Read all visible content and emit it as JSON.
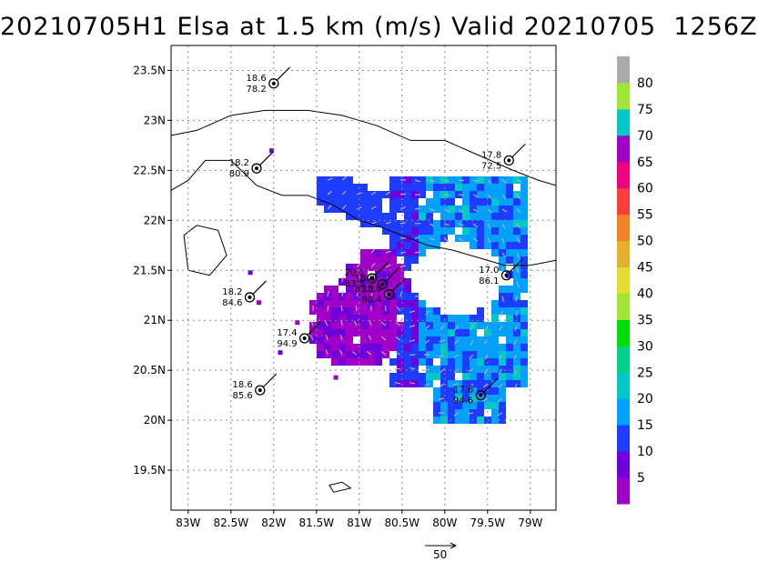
{
  "title": "20210705H1 Elsa at 1.5 km (m/s) Valid 20210705  1256Z",
  "chart_data": {
    "type": "heatmap",
    "title": "20210705H1 Elsa at 1.5 km (m/s) Valid 20210705  1256Z",
    "x_tick_labels": [
      "83W",
      "82.5W",
      "82W",
      "81.5W",
      "81W",
      "80.5W",
      "80W",
      "79.5W",
      "79W"
    ],
    "x_ticks_lon": [
      -83,
      -82.5,
      -82,
      -81.5,
      -81,
      -80.5,
      -80,
      -79.5,
      -79
    ],
    "y_tick_labels": [
      "23.5N",
      "23N",
      "22.5N",
      "22N",
      "21.5N",
      "21N",
      "20.5N",
      "20N",
      "19.5N"
    ],
    "y_ticks_lat": [
      23.5,
      23,
      22.5,
      22,
      21.5,
      21,
      20.5,
      20,
      19.5
    ],
    "xlim": [
      -83.2,
      -78.7
    ],
    "ylim": [
      19.1,
      23.75
    ],
    "grid": true,
    "colorbar": {
      "labels": [
        "5",
        "10",
        "15",
        "20",
        "25",
        "30",
        "35",
        "40",
        "45",
        "50",
        "55",
        "60",
        "65",
        "70",
        "75",
        "80"
      ],
      "bounds": [
        0,
        5,
        10,
        15,
        20,
        25,
        30,
        35,
        40,
        45,
        50,
        55,
        60,
        65,
        70,
        75,
        80,
        85
      ],
      "colors": [
        "#a000c8",
        "#6e00dc",
        "#1e3cff",
        "#00a0ff",
        "#00c8c8",
        "#00d28c",
        "#00dc00",
        "#a0e632",
        "#e6dc32",
        "#e6af2d",
        "#f08228",
        "#fa3c3c",
        "#f00082",
        "#a000c8",
        "#00c8c8",
        "#a0e632",
        "#aaaaaa"
      ]
    },
    "reference_vector": {
      "label": "50",
      "speed": 50
    },
    "stations": [
      {
        "lon": -82.0,
        "lat": 23.37,
        "top": "18.6",
        "bottom": "78.2"
      },
      {
        "lon": -82.2,
        "lat": 22.52,
        "top": "18.2",
        "bottom": "80.9"
      },
      {
        "lon": -79.25,
        "lat": 22.6,
        "top": "17.8",
        "bottom": "72.5"
      },
      {
        "lon": -82.28,
        "lat": 21.23,
        "top": "18.2",
        "bottom": "84.6"
      },
      {
        "lon": -80.85,
        "lat": 21.42,
        "top": "20.1",
        "bottom": "83.5"
      },
      {
        "lon": -80.73,
        "lat": 21.36,
        "top": "18.0",
        "bottom": "83.1"
      },
      {
        "lon": -80.65,
        "lat": 21.26,
        "top": "18.0",
        "bottom": "80.4"
      },
      {
        "lon": -81.64,
        "lat": 20.82,
        "top": "17.4",
        "bottom": "94.9"
      },
      {
        "lon": -79.28,
        "lat": 21.45,
        "top": "17.0",
        "bottom": "86.1"
      },
      {
        "lon": -82.16,
        "lat": 20.3,
        "top": "18.6",
        "bottom": "85.6"
      },
      {
        "lon": -79.58,
        "lat": 20.25,
        "top": "17.6",
        "bottom": "94.6"
      }
    ]
  }
}
